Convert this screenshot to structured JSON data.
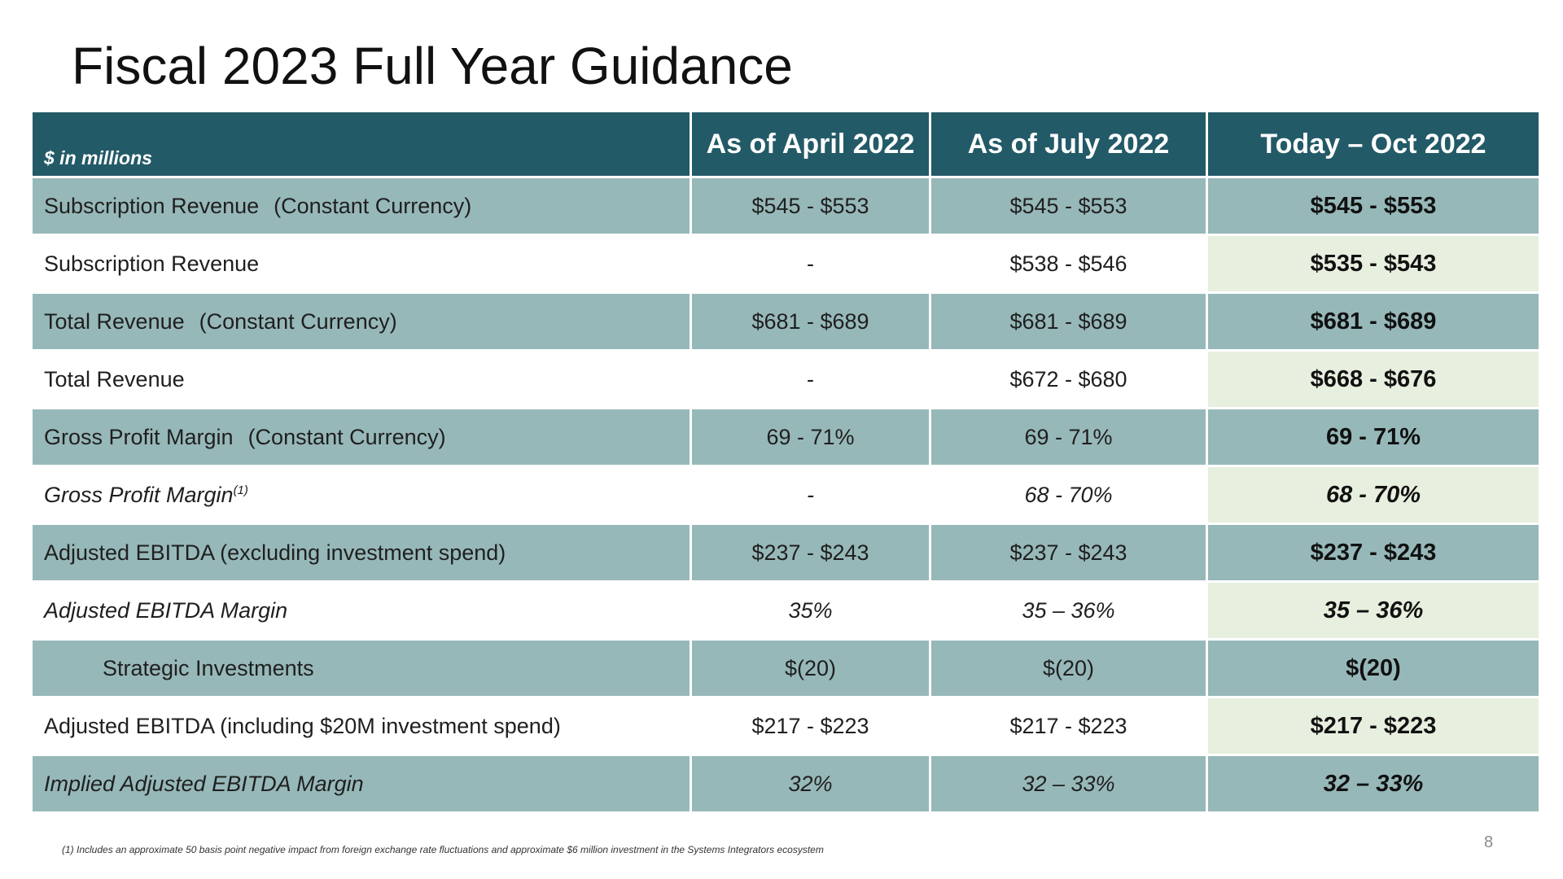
{
  "title": "Fiscal 2023 Full Year Guidance",
  "table": {
    "unit_label": "$ in millions",
    "columns": [
      "As of April 2022",
      "As of July 2022",
      "Today – Oct 2022"
    ],
    "rows": [
      {
        "label": "Subscription Revenue",
        "qualifier": "(Constant Currency)",
        "april": "$545 - $553",
        "july": "$545 - $553",
        "today": "$545 - $553"
      },
      {
        "label": "Subscription Revenue",
        "april": "-",
        "july": "$538 - $546",
        "today": "$535 - $543"
      },
      {
        "label": "Total Revenue",
        "qualifier": "(Constant Currency)",
        "april": "$681 - $689",
        "july": "$681 - $689",
        "today": "$681 - $689"
      },
      {
        "label": "Total Revenue",
        "april": "-",
        "july": "$672 - $680",
        "today": "$668 - $676"
      },
      {
        "label": "Gross Profit Margin",
        "qualifier": "(Constant Currency)",
        "april": "69 - 71%",
        "july": "69 - 71%",
        "today": "69 - 71%"
      },
      {
        "label": "Gross Profit Margin",
        "note_marker": "(1)",
        "april": "-",
        "july": "68 - 70%",
        "today": "68 - 70%"
      },
      {
        "label": "Adjusted EBITDA (excluding investment spend)",
        "april": "$237 - $243",
        "july": "$237 - $243",
        "today": "$237 - $243"
      },
      {
        "label": "Adjusted EBITDA Margin",
        "april": "35%",
        "july": "35 – 36%",
        "today": "35 – 36%"
      },
      {
        "label": "Strategic Investments",
        "april": "$(20)",
        "july": "$(20)",
        "today": "$(20)"
      },
      {
        "label": "Adjusted EBITDA (including $20M investment spend)",
        "april": "$217 - $223",
        "july": "$217 - $223",
        "today": "$217 - $223"
      },
      {
        "label": "Implied Adjusted EBITDA Margin",
        "april": "32%",
        "july": "32 – 33%",
        "today": "32 – 33%"
      }
    ]
  },
  "footnote": "(1) Includes an approximate 50 basis point negative impact from foreign exchange rate fluctuations and approximate $6 million investment in the Systems Integrators ecosystem",
  "page_number": "8",
  "colors": {
    "header_bg": "#235a67",
    "row_shade": "#97b8b9",
    "today_highlight": "#e7efdf"
  }
}
